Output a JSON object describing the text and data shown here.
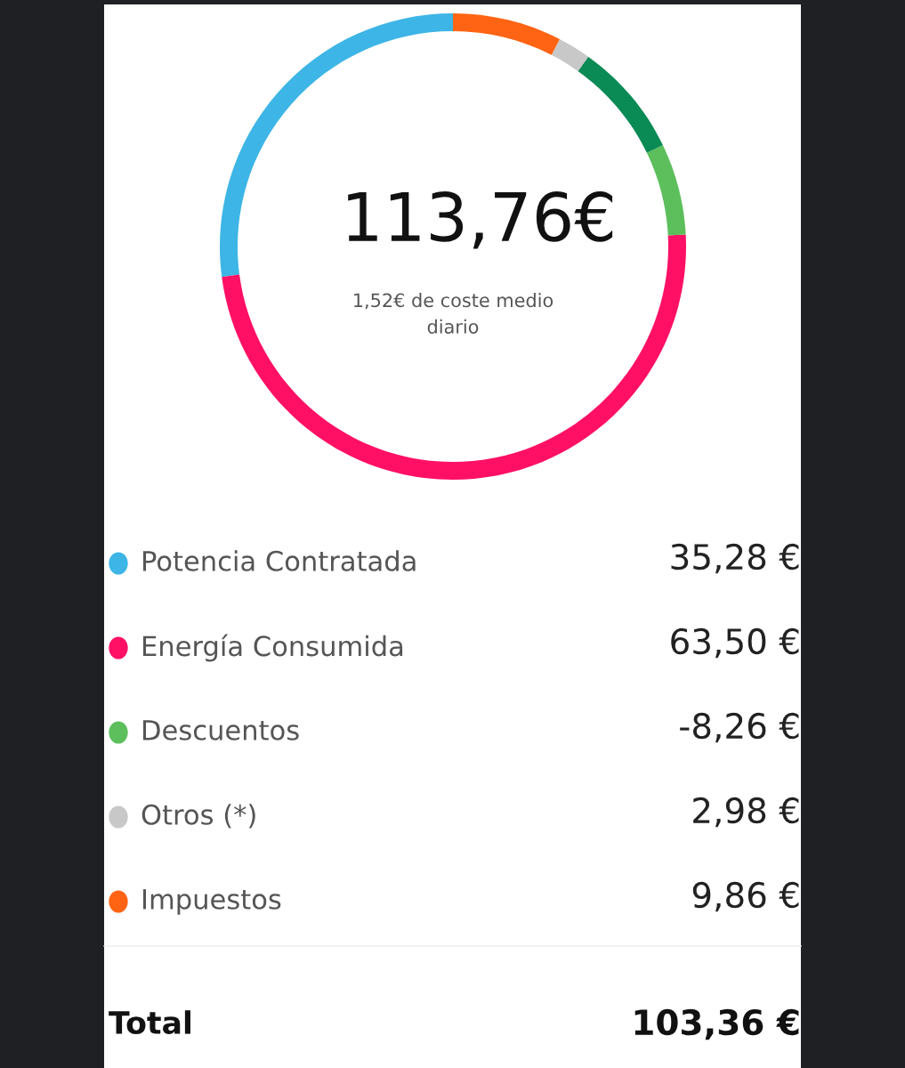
{
  "chart_data": {
    "type": "donut",
    "title": "113,76€",
    "subtitle": "1,52€ de coste medio\ndiario",
    "categories": [
      "Potencia Contratada",
      "Energía Consumida",
      "Descuentos",
      null,
      "Otros (*)",
      "Impuestos"
    ],
    "values": [
      35.28,
      63.5,
      8.26,
      10.4,
      2.98,
      9.86
    ],
    "colors": [
      "#3db5e6",
      "#ff1065",
      "#5cbf5c",
      "#0a8a55",
      "#c8c8c8",
      "#ff6414"
    ],
    "value_labels": [
      "35,28 €",
      "63,50 €",
      null,
      null,
      "2,98 €",
      "9,86 €"
    ],
    "legend": "bottom",
    "annotations": [
      "-8,26 €",
      "Total",
      "103,36 €"
    ]
  }
}
